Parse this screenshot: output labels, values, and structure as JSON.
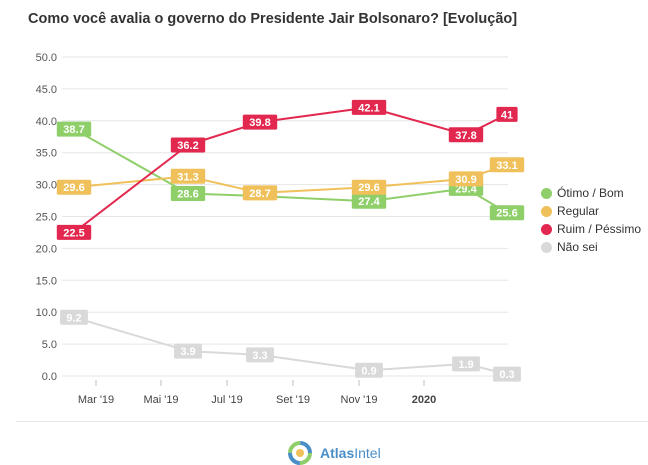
{
  "chart_data": {
    "type": "line",
    "title": "Como você avalia o governo do Presidente Jair Bolsonaro? [Evolução]",
    "ylim": [
      0,
      50
    ],
    "yticks": [
      "0.0",
      "5.0",
      "10.0",
      "15.0",
      "20.0",
      "25.0",
      "30.0",
      "35.0",
      "40.0",
      "45.0",
      "50.0"
    ],
    "xticks": [
      {
        "label": "Mar '19",
        "bold": false
      },
      {
        "label": "Mai '19",
        "bold": false
      },
      {
        "label": "Jul '19",
        "bold": false
      },
      {
        "label": "Set '19",
        "bold": false
      },
      {
        "label": "Nov '19",
        "bold": false
      },
      {
        "label": "2020",
        "bold": true
      }
    ],
    "series": [
      {
        "name": "Ótimo / Bom",
        "color": "#8fcf6a",
        "values": [
          38.7,
          28.6,
          28.2,
          27.4,
          29.4,
          25.6
        ],
        "labels": [
          "38.7",
          "28.6",
          "",
          "27.4",
          "29.4",
          "25.6"
        ]
      },
      {
        "name": "Regular",
        "color": "#f0c05a",
        "values": [
          29.6,
          31.3,
          28.7,
          29.6,
          30.9,
          33.1
        ],
        "labels": [
          "29.6",
          "31.3",
          "28.7",
          "29.6",
          "30.9",
          "33.1"
        ]
      },
      {
        "name": "Ruim / Péssimo",
        "color": "#e2284f",
        "values": [
          22.5,
          36.2,
          39.8,
          42.1,
          37.8,
          41
        ],
        "labels": [
          "22.5",
          "36.2",
          "39.8",
          "42.1",
          "37.8",
          "41"
        ]
      },
      {
        "name": "Não sei",
        "color": "#d9d9d9",
        "values": [
          9.2,
          3.9,
          3.3,
          0.9,
          1.9,
          0.3
        ],
        "labels": [
          "9.2",
          "3.9",
          "3.3",
          "0.9",
          "1.9",
          "0.3"
        ]
      }
    ],
    "legend_position": "right",
    "grid": true
  },
  "footer": {
    "brand_bold": "Atlas",
    "brand_light": "Intel"
  },
  "colors": {
    "brand": "#4a8ec8",
    "grid": "#e6e6e6"
  }
}
